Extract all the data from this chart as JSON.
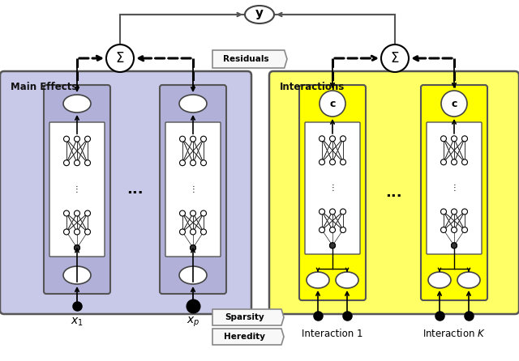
{
  "fig_width": 6.4,
  "fig_height": 4.46,
  "dpi": 100,
  "bg_color": "#ffffff",
  "main_effects_box_color": "#c8c8e8",
  "main_effects_box_edge": "#555555",
  "main_effects_label": "Main Effects",
  "interactions_box_color": "#ffff66",
  "interactions_box_edge": "#555555",
  "interactions_label": "Interactions",
  "subnet_main_color": "#b0b0d8",
  "subnet_interact_color": "#ffff00",
  "sigma_label": "Σ",
  "c_label": "c",
  "residuals_label": "Residuals",
  "sparsity_label": "Sparsity",
  "heredity_label": "Heredity",
  "x1_label": "$x_1$",
  "xp_label": "$x_p$",
  "int1_label": "Interaction 1",
  "intK_label": "Interaction $K$",
  "vdots_label": "⋮"
}
